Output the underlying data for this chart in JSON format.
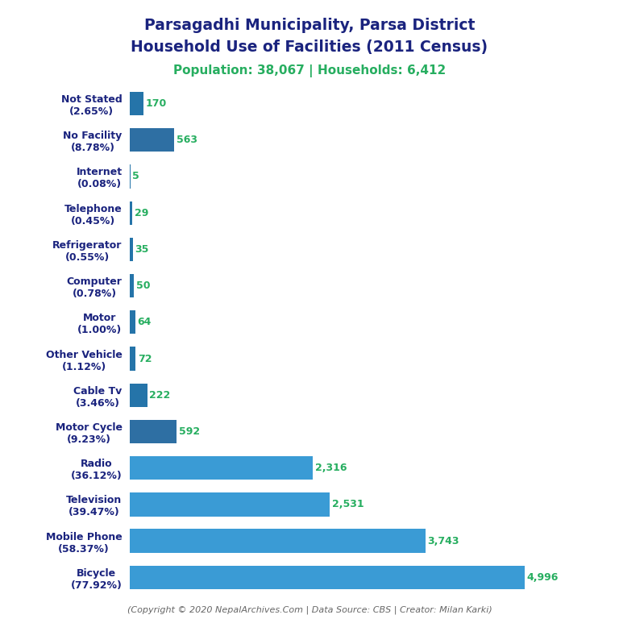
{
  "title_line1": "Parsagadhi Municipality, Parsa District",
  "title_line2": "Household Use of Facilities (2011 Census)",
  "subtitle": "Population: 38,067 | Households: 6,412",
  "footer": "(Copyright © 2020 NepalArchives.Com | Data Source: CBS | Creator: Milan Karki)",
  "categories": [
    "Bicycle\n(77.92%)",
    "Mobile Phone\n(58.37%)",
    "Television\n(39.47%)",
    "Radio\n(36.12%)",
    "Motor Cycle\n(9.23%)",
    "Cable Tv\n(3.46%)",
    "Other Vehicle\n(1.12%)",
    "Motor\n(1.00%)",
    "Computer\n(0.78%)",
    "Refrigerator\n(0.55%)",
    "Telephone\n(0.45%)",
    "Internet\n(0.08%)",
    "No Facility\n(8.78%)",
    "Not Stated\n(2.65%)"
  ],
  "values": [
    4996,
    3743,
    2531,
    2316,
    592,
    222,
    72,
    64,
    50,
    35,
    29,
    5,
    563,
    170
  ],
  "bar_colors": [
    "#3a9bd5",
    "#3a9bd5",
    "#3a9bd5",
    "#3a9bd5",
    "#2e6fa3",
    "#2574a9",
    "#2574a9",
    "#2574a9",
    "#2574a9",
    "#2574a9",
    "#2574a9",
    "#2574a9",
    "#2e6fa3",
    "#2574a9"
  ],
  "value_color": "#27ae60",
  "title_color": "#1a237e",
  "subtitle_color": "#27ae60",
  "footer_color": "#666666",
  "background_color": "#ffffff",
  "xlim": [
    0,
    5800
  ]
}
